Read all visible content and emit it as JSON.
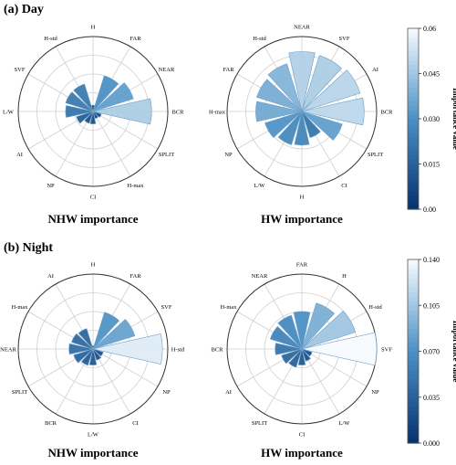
{
  "panels": [
    {
      "heading": "(a) Day",
      "charts": [
        {
          "title": "NHW importance",
          "axes": [
            "H",
            "FAR",
            "NEAR",
            "BCR",
            "SPLIT",
            "H-max",
            "CI",
            "NP",
            "AI",
            "L/W",
            "SVF",
            "H-std"
          ],
          "values": [
            0.005,
            0.03,
            0.034,
            0.047,
            0.007,
            0.006,
            0.01,
            0.01,
            0.014,
            0.022,
            0.023,
            0.023
          ]
        },
        {
          "title": "HW importance",
          "axes": [
            "NEAR",
            "SVF",
            "AI",
            "BCR",
            "SPLIT",
            "CI",
            "H",
            "L/W",
            "NP",
            "H-max",
            "FAR",
            "H-std"
          ],
          "values": [
            0.048,
            0.047,
            0.049,
            0.05,
            0.034,
            0.022,
            0.027,
            0.028,
            0.031,
            0.037,
            0.038,
            0.04
          ]
        }
      ],
      "colorbar": {
        "label": "Importance value",
        "ticks": [
          "0.00",
          "0.015",
          "0.030",
          "0.045",
          "0.06"
        ],
        "max": 0.06
      }
    },
    {
      "heading": "(b) Night",
      "charts": [
        {
          "title": "NHW importance",
          "axes": [
            "H",
            "FAR",
            "SVF",
            "H-std",
            "NP",
            "CI",
            "L/W",
            "BCR",
            "SPLIT",
            "NEAR",
            "H-max",
            "AI"
          ],
          "values": [
            0.006,
            0.072,
            0.082,
            0.13,
            0.02,
            0.022,
            0.03,
            0.032,
            0.038,
            0.045,
            0.042,
            0.04
          ]
        },
        {
          "title": "HW importance",
          "axes": [
            "FAR",
            "H",
            "H-std",
            "SVF",
            "NP",
            "L/W",
            "CI",
            "SPLIT",
            "AI",
            "BCR",
            "H-max",
            "NEAR"
          ],
          "values": [
            0.07,
            0.09,
            0.105,
            0.14,
            0.02,
            0.024,
            0.03,
            0.036,
            0.04,
            0.05,
            0.062,
            0.066
          ]
        }
      ],
      "colorbar": {
        "label": "Importance value",
        "ticks": [
          "0.000",
          "0.035",
          "0.070",
          "0.105",
          "0.140"
        ],
        "max": 0.14
      }
    }
  ],
  "colors": {
    "low": "#08306b",
    "mid": "#4a90c4",
    "high": "#f7fbff",
    "grid": "#cfcfcf",
    "frame": "#333333"
  },
  "chart_data": [
    {
      "type": "polar-bar",
      "title": "NHW importance",
      "panel": "(a) Day",
      "categories": [
        "H",
        "FAR",
        "NEAR",
        "BCR",
        "SPLIT",
        "H-max",
        "CI",
        "NP",
        "AI",
        "L/W",
        "SVF",
        "H-std"
      ],
      "values": [
        0.005,
        0.03,
        0.034,
        0.047,
        0.007,
        0.006,
        0.01,
        0.01,
        0.014,
        0.022,
        0.023,
        0.023
      ],
      "colorbar_range": [
        0,
        0.06
      ]
    },
    {
      "type": "polar-bar",
      "title": "HW importance",
      "panel": "(a) Day",
      "categories": [
        "NEAR",
        "SVF",
        "AI",
        "BCR",
        "SPLIT",
        "CI",
        "H",
        "L/W",
        "NP",
        "H-max",
        "FAR",
        "H-std"
      ],
      "values": [
        0.048,
        0.047,
        0.049,
        0.05,
        0.034,
        0.022,
        0.027,
        0.028,
        0.031,
        0.037,
        0.038,
        0.04
      ],
      "colorbar_range": [
        0,
        0.06
      ]
    },
    {
      "type": "polar-bar",
      "title": "NHW importance",
      "panel": "(b) Night",
      "categories": [
        "H",
        "FAR",
        "SVF",
        "H-std",
        "NP",
        "CI",
        "L/W",
        "BCR",
        "SPLIT",
        "NEAR",
        "H-max",
        "AI"
      ],
      "values": [
        0.006,
        0.072,
        0.082,
        0.13,
        0.02,
        0.022,
        0.03,
        0.032,
        0.038,
        0.045,
        0.042,
        0.04
      ],
      "colorbar_range": [
        0,
        0.14
      ]
    },
    {
      "type": "polar-bar",
      "title": "HW importance",
      "panel": "(b) Night",
      "categories": [
        "FAR",
        "H",
        "H-std",
        "SVF",
        "NP",
        "L/W",
        "CI",
        "SPLIT",
        "AI",
        "BCR",
        "H-max",
        "NEAR"
      ],
      "values": [
        0.07,
        0.09,
        0.105,
        0.14,
        0.02,
        0.024,
        0.03,
        0.036,
        0.04,
        0.05,
        0.062,
        0.066
      ],
      "colorbar_range": [
        0,
        0.14
      ]
    }
  ]
}
